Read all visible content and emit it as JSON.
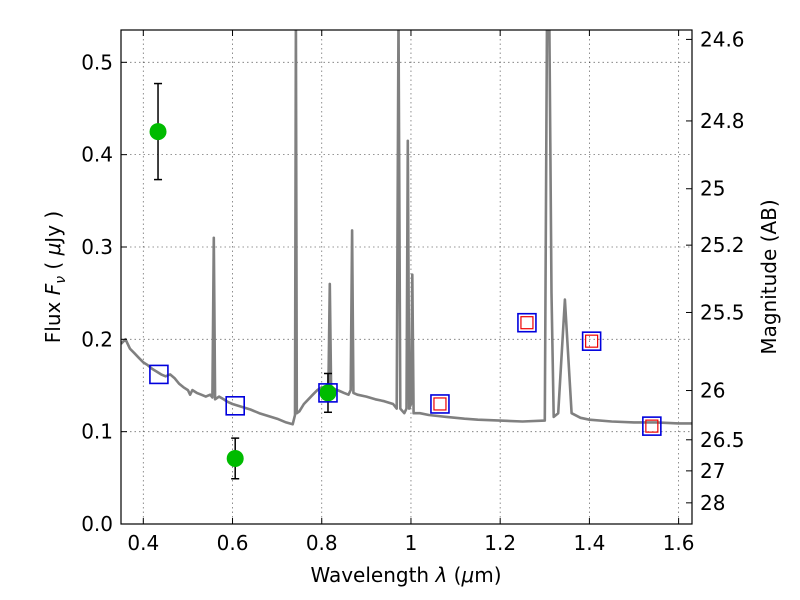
{
  "chart_data": {
    "type": "scatter",
    "xlabel_prefix": "Wavelength ",
    "xlabel_lambda": "λ",
    "xlabel_unit_open": " (",
    "xlabel_mu": "μ",
    "xlabel_unit_close": "m)",
    "ylabel_prefix": "Flux ",
    "ylabel_F": "F",
    "ylabel_nu": "ν",
    "ylabel_unit_open": " ( ",
    "ylabel_mu": "μ",
    "ylabel_unit_close": "Jy )",
    "y2label": "Magnitude (AB)",
    "xlim": [
      0.35,
      1.63
    ],
    "ylim": [
      0.0,
      0.535
    ],
    "x_ticks": [
      {
        "v": 0.4,
        "label": "0.4"
      },
      {
        "v": 0.6,
        "label": "0.6"
      },
      {
        "v": 0.8,
        "label": "0.8"
      },
      {
        "v": 1.0,
        "label": "1"
      },
      {
        "v": 1.2,
        "label": "1.2"
      },
      {
        "v": 1.4,
        "label": "1.4"
      },
      {
        "v": 1.6,
        "label": "1.6"
      }
    ],
    "y_ticks": [
      {
        "v": 0.0,
        "label": "0.0"
      },
      {
        "v": 0.1,
        "label": "0.1"
      },
      {
        "v": 0.2,
        "label": "0.2"
      },
      {
        "v": 0.3,
        "label": "0.3"
      },
      {
        "v": 0.4,
        "label": "0.4"
      },
      {
        "v": 0.5,
        "label": "0.5"
      }
    ],
    "y2_ticks": [
      {
        "mag": 24.6,
        "label": "24.6"
      },
      {
        "mag": 24.8,
        "label": "24.8"
      },
      {
        "mag": 25.0,
        "label": "25"
      },
      {
        "mag": 25.2,
        "label": "25.2"
      },
      {
        "mag": 25.5,
        "label": "25.5"
      },
      {
        "mag": 26.0,
        "label": "26"
      },
      {
        "mag": 26.5,
        "label": "26.5"
      },
      {
        "mag": 27.0,
        "label": "27"
      },
      {
        "mag": 28.0,
        "label": "28"
      }
    ],
    "grid": true,
    "series": [
      {
        "kind": "line",
        "color": "#808080",
        "points": [
          [
            0.35,
            0.195
          ],
          [
            0.36,
            0.2
          ],
          [
            0.37,
            0.19
          ],
          [
            0.38,
            0.185
          ],
          [
            0.39,
            0.18
          ],
          [
            0.4,
            0.175
          ],
          [
            0.41,
            0.172
          ],
          [
            0.42,
            0.168
          ],
          [
            0.43,
            0.165
          ],
          [
            0.44,
            0.162
          ],
          [
            0.45,
            0.16
          ],
          [
            0.46,
            0.162
          ],
          [
            0.47,
            0.158
          ],
          [
            0.48,
            0.152
          ],
          [
            0.49,
            0.148
          ],
          [
            0.5,
            0.145
          ],
          [
            0.505,
            0.14
          ],
          [
            0.51,
            0.145
          ],
          [
            0.52,
            0.142
          ],
          [
            0.53,
            0.14
          ],
          [
            0.54,
            0.138
          ],
          [
            0.55,
            0.14
          ],
          [
            0.555,
            0.137
          ],
          [
            0.558,
            0.31
          ],
          [
            0.561,
            0.135
          ],
          [
            0.57,
            0.138
          ],
          [
            0.58,
            0.135
          ],
          [
            0.59,
            0.132
          ],
          [
            0.6,
            0.13
          ],
          [
            0.62,
            0.127
          ],
          [
            0.64,
            0.124
          ],
          [
            0.66,
            0.12
          ],
          [
            0.68,
            0.117
          ],
          [
            0.7,
            0.114
          ],
          [
            0.72,
            0.11
          ],
          [
            0.735,
            0.108
          ],
          [
            0.74,
            0.118
          ],
          [
            0.742,
            0.55
          ],
          [
            0.744,
            0.12
          ],
          [
            0.75,
            0.122
          ],
          [
            0.76,
            0.13
          ],
          [
            0.77,
            0.135
          ],
          [
            0.78,
            0.14
          ],
          [
            0.79,
            0.145
          ],
          [
            0.8,
            0.148
          ],
          [
            0.81,
            0.145
          ],
          [
            0.815,
            0.148
          ],
          [
            0.818,
            0.26
          ],
          [
            0.821,
            0.148
          ],
          [
            0.83,
            0.146
          ],
          [
            0.84,
            0.144
          ],
          [
            0.85,
            0.142
          ],
          [
            0.86,
            0.14
          ],
          [
            0.865,
            0.145
          ],
          [
            0.868,
            0.318
          ],
          [
            0.871,
            0.142
          ],
          [
            0.88,
            0.14
          ],
          [
            0.9,
            0.138
          ],
          [
            0.92,
            0.135
          ],
          [
            0.94,
            0.133
          ],
          [
            0.96,
            0.13
          ],
          [
            0.968,
            0.125
          ],
          [
            0.972,
            0.55
          ],
          [
            0.976,
            0.125
          ],
          [
            0.985,
            0.12
          ],
          [
            0.99,
            0.125
          ],
          [
            0.993,
            0.415
          ],
          [
            0.996,
            0.125
          ],
          [
            1.0,
            0.13
          ],
          [
            1.003,
            0.27
          ],
          [
            1.006,
            0.12
          ],
          [
            1.02,
            0.12
          ],
          [
            1.04,
            0.118
          ],
          [
            1.06,
            0.117
          ],
          [
            1.08,
            0.116
          ],
          [
            1.1,
            0.115
          ],
          [
            1.12,
            0.114
          ],
          [
            1.15,
            0.113
          ],
          [
            1.2,
            0.112
          ],
          [
            1.25,
            0.111
          ],
          [
            1.3,
            0.112
          ],
          [
            1.305,
            0.55
          ],
          [
            1.31,
            0.55
          ],
          [
            1.315,
            0.25
          ],
          [
            1.32,
            0.116
          ],
          [
            1.33,
            0.12
          ],
          [
            1.345,
            0.243
          ],
          [
            1.36,
            0.12
          ],
          [
            1.38,
            0.115
          ],
          [
            1.4,
            0.113
          ],
          [
            1.45,
            0.111
          ],
          [
            1.5,
            0.11
          ],
          [
            1.55,
            0.11
          ],
          [
            1.6,
            0.109
          ],
          [
            1.63,
            0.109
          ]
        ]
      },
      {
        "kind": "points-with-errors",
        "color": "#00bb00",
        "points": [
          {
            "x": 0.433,
            "y": 0.425,
            "err": 0.052
          },
          {
            "x": 0.606,
            "y": 0.071,
            "err": 0.022
          },
          {
            "x": 0.814,
            "y": 0.142,
            "err": 0.021
          }
        ]
      },
      {
        "kind": "squares-blue",
        "color": "#0000dd",
        "points": [
          {
            "x": 0.435,
            "y": 0.162
          },
          {
            "x": 0.606,
            "y": 0.128
          },
          {
            "x": 0.814,
            "y": 0.142
          },
          {
            "x": 1.065,
            "y": 0.13
          },
          {
            "x": 1.26,
            "y": 0.218
          },
          {
            "x": 1.405,
            "y": 0.198
          },
          {
            "x": 1.54,
            "y": 0.106
          }
        ]
      },
      {
        "kind": "squares-red",
        "color": "#ee0000",
        "points": [
          {
            "x": 1.065,
            "y": 0.13
          },
          {
            "x": 1.26,
            "y": 0.218
          },
          {
            "x": 1.405,
            "y": 0.198
          },
          {
            "x": 1.54,
            "y": 0.106
          }
        ]
      }
    ]
  }
}
